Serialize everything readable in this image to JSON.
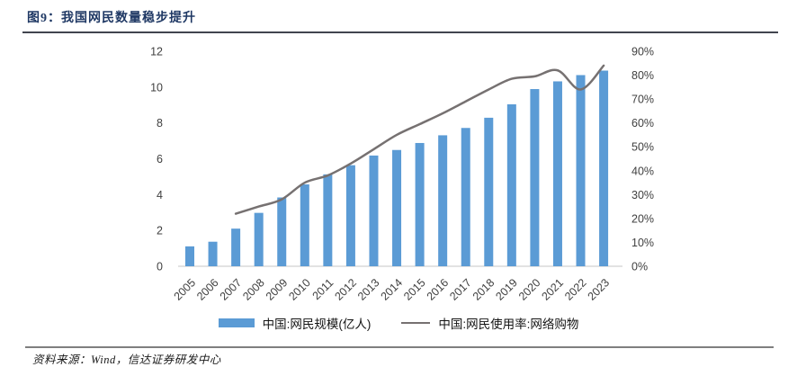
{
  "figure": {
    "title": "图9：我国网民数量稳步提升",
    "source": "资料来源：Wind，信达证券研发中心"
  },
  "colors": {
    "bar": "#5B9BD5",
    "line": "#767171",
    "title_navy": "#1f3864",
    "axis_text": "#404040",
    "baseline": "#d9d9d9",
    "title_rule": "#41454e",
    "footer_rule": "#7f7f7f"
  },
  "chart_data": {
    "type": "bar+line",
    "title": "我国网民数量稳步提升",
    "grid": false,
    "legend_position": "bottom",
    "categories": [
      "2005",
      "2006",
      "2007",
      "2008",
      "2009",
      "2010",
      "2011",
      "2012",
      "2013",
      "2014",
      "2015",
      "2016",
      "2017",
      "2018",
      "2019",
      "2020",
      "2021",
      "2022",
      "2023"
    ],
    "series": [
      {
        "name": "中国:网民规模(亿人)",
        "type": "bar",
        "axis": "left",
        "color": "#5B9BD5",
        "values": [
          1.11,
          1.37,
          2.1,
          2.98,
          3.84,
          4.57,
          5.13,
          5.64,
          6.18,
          6.49,
          6.88,
          7.31,
          7.72,
          8.29,
          9.04,
          9.89,
          10.32,
          10.67,
          10.92
        ]
      },
      {
        "name": "中国:网民使用率:网络购物",
        "type": "line",
        "axis": "right",
        "color": "#767171",
        "values": [
          null,
          null,
          22,
          25,
          28,
          35,
          38,
          43,
          49,
          55,
          59.5,
          64,
          69,
          74,
          78.5,
          79.5,
          82,
          74,
          84
        ]
      }
    ],
    "left_axis": {
      "min": 0,
      "max": 12,
      "step": 2,
      "ticks": [
        "0",
        "2",
        "4",
        "6",
        "8",
        "10",
        "12"
      ]
    },
    "right_axis": {
      "min": 0,
      "max": 90,
      "step": 10,
      "ticks": [
        "0%",
        "10%",
        "20%",
        "30%",
        "40%",
        "50%",
        "60%",
        "70%",
        "80%",
        "90%"
      ]
    }
  }
}
